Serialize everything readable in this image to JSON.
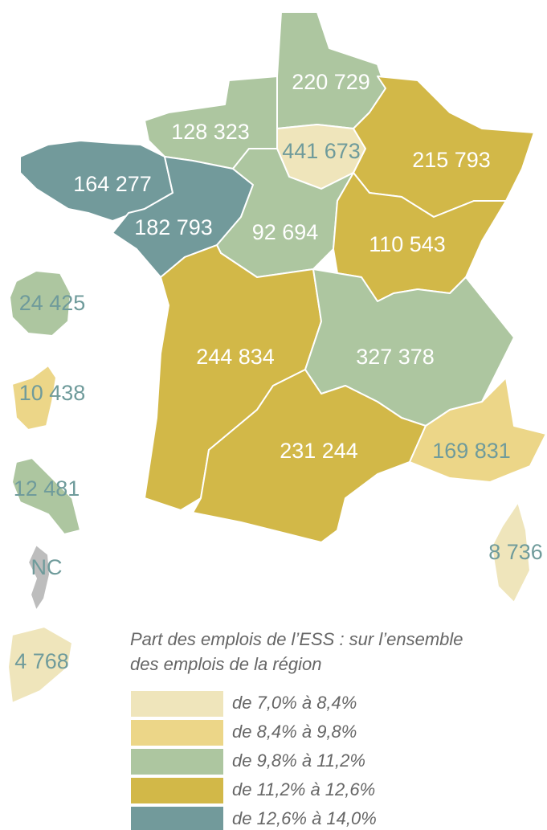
{
  "legend": {
    "title": [
      "Part des emplois de l’ESS : sur l’ensemble",
      "des emplois de la région"
    ],
    "classes": [
      {
        "label": "de 7,0% à 8,4%",
        "color": "#efe5bb"
      },
      {
        "label": "de 8,4% à 9,8%",
        "color": "#ecd688"
      },
      {
        "label": "de 9,8% à 11,2%",
        "color": "#adc6a0"
      },
      {
        "label": "de 11,2% à 12,6%",
        "color": "#d2b848"
      },
      {
        "label": "de 12,6% à 14,0%",
        "color": "#729a9b"
      }
    ]
  },
  "regions": [
    {
      "label": "220 729",
      "class": 2
    },
    {
      "label": "128 323",
      "class": 2
    },
    {
      "label": "441 673",
      "class": 0
    },
    {
      "label": "215 793",
      "class": 3
    },
    {
      "label": "164 277",
      "class": 4
    },
    {
      "label": "182 793",
      "class": 4
    },
    {
      "label": "92 694",
      "class": 2
    },
    {
      "label": "110 543",
      "class": 3
    },
    {
      "label": "244 834",
      "class": 3
    },
    {
      "label": "327 378",
      "class": 2
    },
    {
      "label": "231 244",
      "class": 3
    },
    {
      "label": "169 831",
      "class": 1
    },
    {
      "label": "8 736",
      "class": 0
    },
    {
      "label": "24 425",
      "class": 2
    },
    {
      "label": "10 438",
      "class": 1
    },
    {
      "label": "12 481",
      "class": 2
    },
    {
      "label": "NC",
      "nodata": true
    },
    {
      "label": "4 768",
      "class": 0
    }
  ]
}
